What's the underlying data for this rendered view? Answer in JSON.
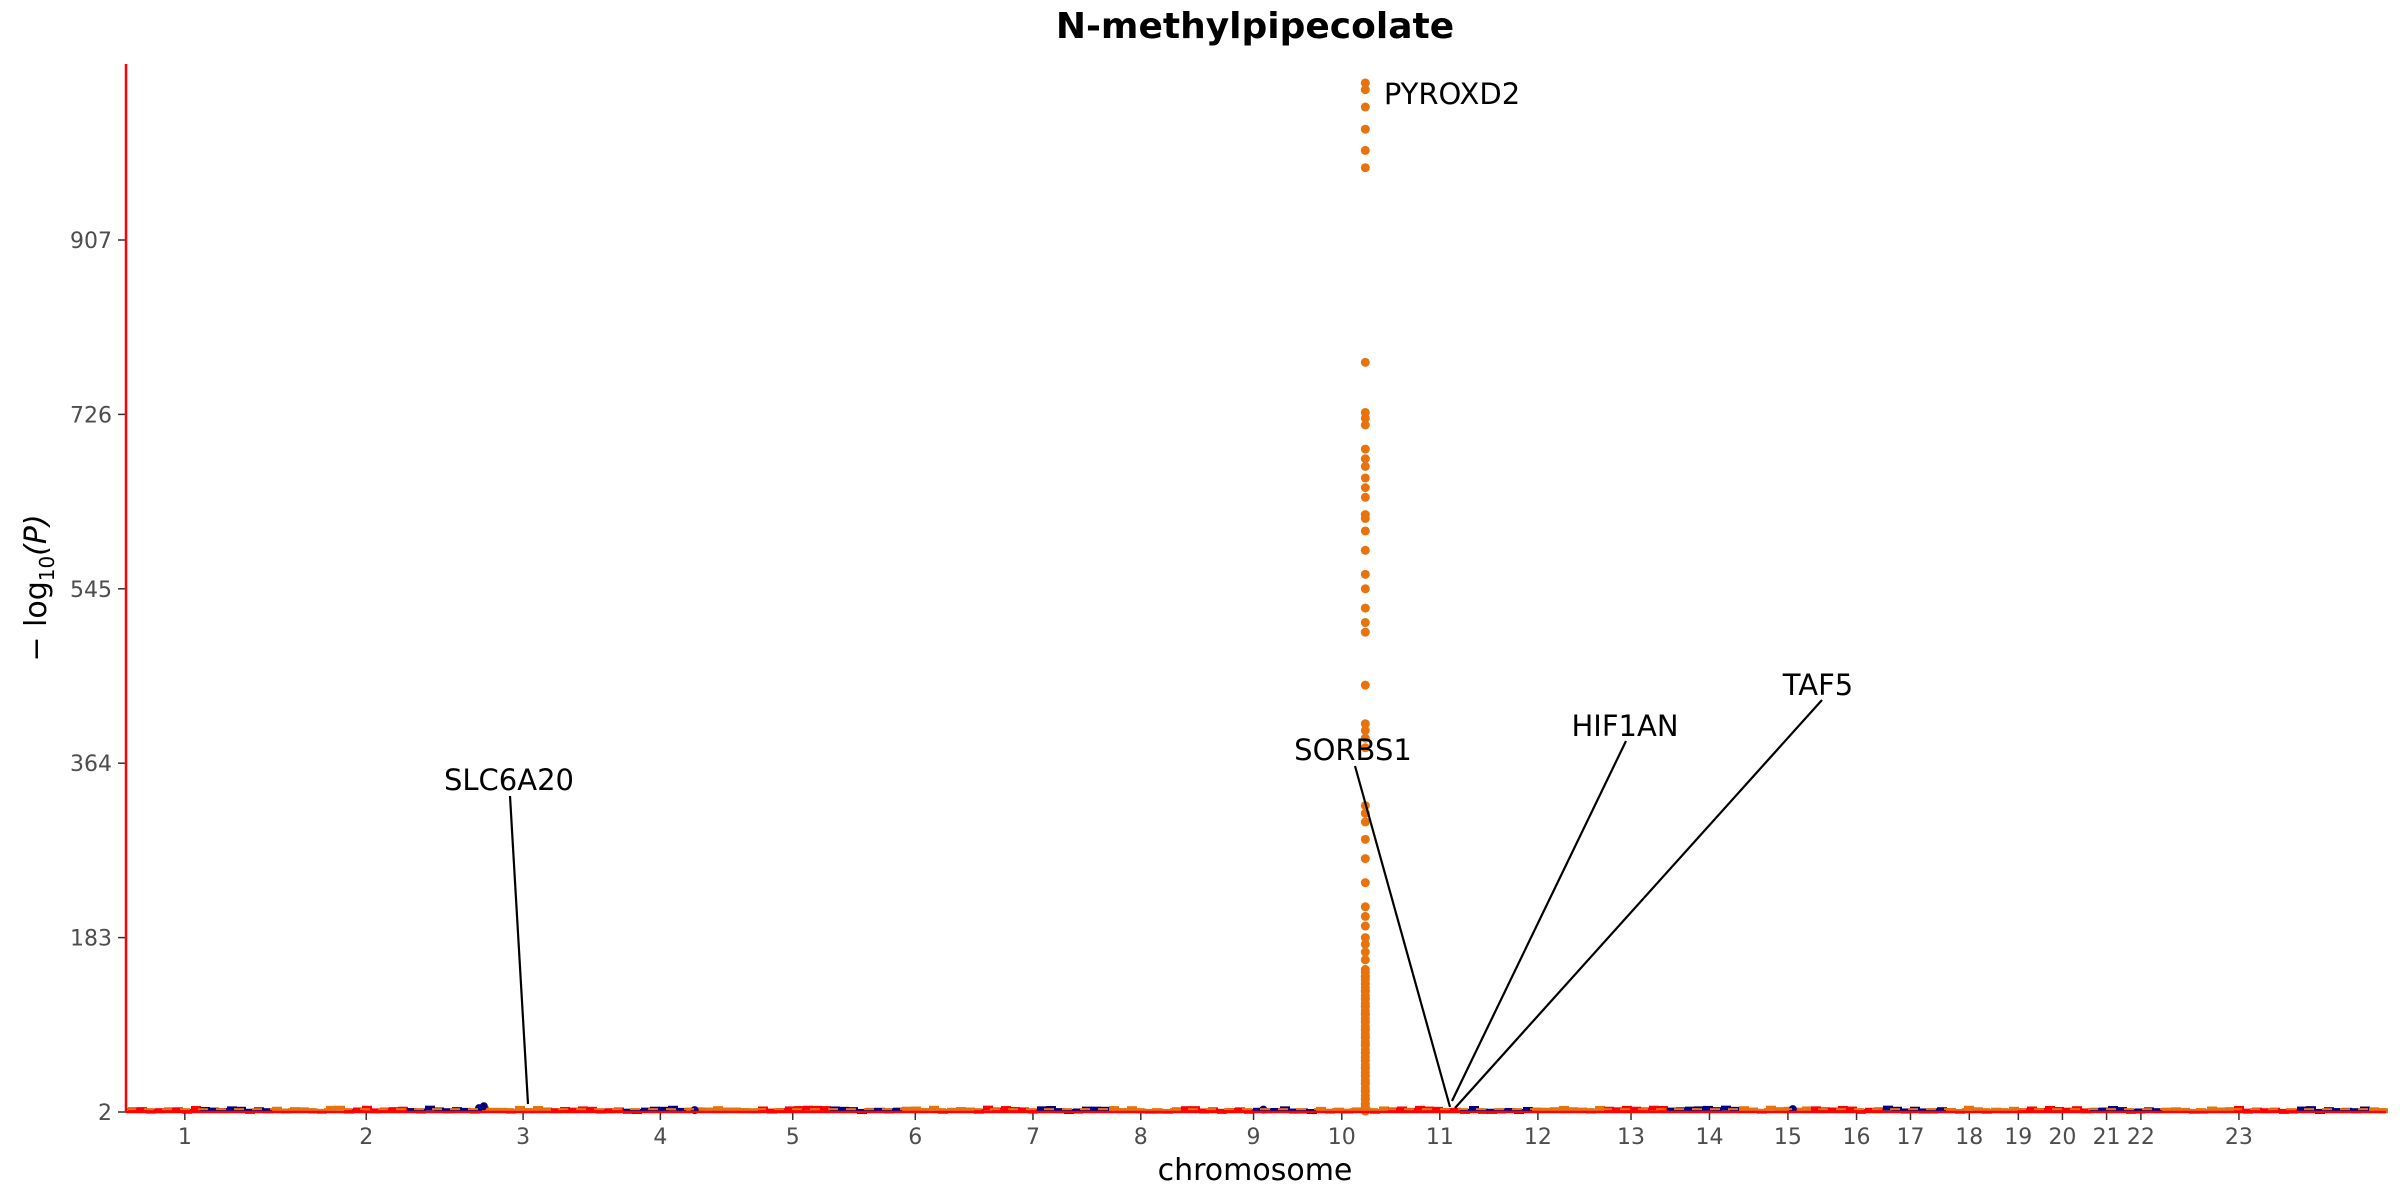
{
  "chart_data": {
    "type": "scatter",
    "subtype": "manhattan",
    "title": "N-methylpipecolate",
    "xlabel": "chromosome",
    "ylabel": "−log10(P)",
    "ylabel_parts": {
      "prefix": "− log",
      "subscript": "10",
      "suffix": "(P)"
    },
    "y_ticks": [
      2,
      183,
      364,
      545,
      726,
      907
    ],
    "ylim": [
      2,
      1070
    ],
    "x_axis_range": [
      0.4,
      23.45
    ],
    "chromosomes": [
      {
        "label": "1",
        "pos": 1
      },
      {
        "label": "2",
        "pos": 2.85
      },
      {
        "label": "3",
        "pos": 4.45
      },
      {
        "label": "4",
        "pos": 5.85
      },
      {
        "label": "5",
        "pos": 7.2
      },
      {
        "label": "6",
        "pos": 8.45
      },
      {
        "label": "7",
        "pos": 9.65
      },
      {
        "label": "8",
        "pos": 10.75
      },
      {
        "label": "9",
        "pos": 11.9
      },
      {
        "label": "10",
        "pos": 12.8
      },
      {
        "label": "11",
        "pos": 13.8
      },
      {
        "label": "12",
        "pos": 14.8
      },
      {
        "label": "13",
        "pos": 15.75
      },
      {
        "label": "14",
        "pos": 16.55
      },
      {
        "label": "15",
        "pos": 17.35
      },
      {
        "label": "16",
        "pos": 18.05
      },
      {
        "label": "17",
        "pos": 18.6
      },
      {
        "label": "18",
        "pos": 19.2
      },
      {
        "label": "19",
        "pos": 19.7
      },
      {
        "label": "20",
        "pos": 20.15
      },
      {
        "label": "21",
        "pos": 20.6
      },
      {
        "label": "22",
        "pos": 20.95
      },
      {
        "label": "23",
        "pos": 21.95
      }
    ],
    "highlight_locus": {
      "x": 13.04,
      "color": "#E8730D",
      "y_values": [
        1070,
        1063,
        1045,
        1022,
        1000,
        982,
        780,
        728,
        722,
        715,
        690,
        680,
        672,
        660,
        650,
        640,
        622,
        618,
        605,
        585,
        560,
        545,
        525,
        510,
        500,
        445,
        405,
        398,
        390,
        380,
        320,
        312,
        303,
        285,
        265,
        240,
        215,
        205,
        195,
        183,
        176,
        168,
        160,
        150,
        142,
        135,
        128,
        120,
        112,
        104,
        96,
        88,
        80,
        72,
        64,
        56,
        48,
        40,
        32,
        24,
        16,
        10,
        5,
        3
      ]
    },
    "baseline_colors": [
      "#FF0000",
      "#000080",
      "#E8730D"
    ],
    "significance_line": {
      "value": 5,
      "color": "#E8730D"
    },
    "annotations": [
      {
        "text": "PYROXD2",
        "x": 13.04,
        "y": 1070
      },
      {
        "text": "SLC6A20",
        "x": 4.0,
        "y": 6
      },
      {
        "text": "SORBS1",
        "x": 13.0,
        "y": 4
      },
      {
        "text": "HIF1AN",
        "x": 13.06,
        "y": 14
      },
      {
        "text": "TAF5",
        "x": 13.1,
        "y": 4
      }
    ],
    "grid": false,
    "axis_color": "#FF0000"
  }
}
